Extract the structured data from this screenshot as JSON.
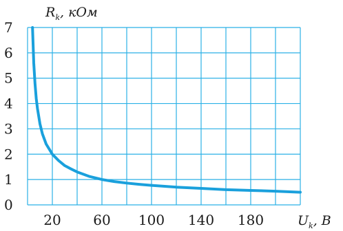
{
  "chart_data": {
    "type": "line",
    "title": "",
    "xlabel": {
      "main": "U",
      "sub": "k",
      "unit": ", В"
    },
    "ylabel": {
      "main": "R",
      "sub": "k",
      "unit": ", кОм"
    },
    "xlim": [
      0,
      220
    ],
    "ylim": [
      0,
      7
    ],
    "x_grid_step": 20,
    "y_grid_step": 1,
    "x_tick_labels": [
      "20",
      "60",
      "100",
      "140",
      "180"
    ],
    "x_tick_values": [
      20,
      60,
      100,
      140,
      180
    ],
    "y_tick_labels": [
      "0",
      "1",
      "2",
      "3",
      "4",
      "5",
      "6",
      "7"
    ],
    "y_tick_values": [
      0,
      1,
      2,
      3,
      4,
      5,
      6,
      7
    ],
    "grid": true,
    "line_color": "#1aa0dc",
    "grid_color": "#2bb1e6",
    "series": [
      {
        "x": [
          4,
          5,
          6,
          7,
          8,
          10,
          12,
          15,
          20,
          25,
          30,
          35,
          40,
          50,
          60,
          70,
          80,
          90,
          100,
          120,
          140,
          160,
          180,
          200,
          220
        ],
        "y": [
          7.0,
          5.6,
          4.8,
          4.2,
          3.8,
          3.2,
          2.8,
          2.4,
          2.0,
          1.75,
          1.55,
          1.42,
          1.3,
          1.12,
          1.0,
          0.92,
          0.86,
          0.81,
          0.77,
          0.7,
          0.65,
          0.6,
          0.57,
          0.54,
          0.5
        ]
      }
    ]
  }
}
